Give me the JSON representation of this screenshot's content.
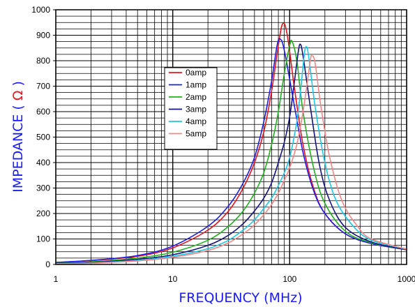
{
  "chart_data": {
    "type": "line",
    "xlabel": "FREQUENCY  (MHz)",
    "ylabel_main": "IMPEDANCE",
    "ylabel_unit": "Ω",
    "x_scale": "log",
    "xlim": [
      1,
      1000
    ],
    "ylim": [
      0,
      1000
    ],
    "x_ticks": [
      1,
      10,
      100,
      1000
    ],
    "x_tick_labels": [
      "1",
      "10",
      "100",
      "1000"
    ],
    "y_ticks": [
      0,
      100,
      200,
      300,
      400,
      500,
      600,
      700,
      800,
      900,
      1000
    ],
    "y_tick_labels": [
      "0",
      "100",
      "200",
      "300",
      "400",
      "500",
      "600",
      "700",
      "800",
      "900",
      "1000"
    ],
    "grid": true,
    "legend_position": "upper-left-center",
    "series": [
      {
        "name": "0amp",
        "color": "#e8141e",
        "points": [
          [
            1,
            8
          ],
          [
            2,
            15
          ],
          [
            5,
            32
          ],
          [
            10,
            65
          ],
          [
            20,
            135
          ],
          [
            30,
            210
          ],
          [
            40,
            300
          ],
          [
            50,
            400
          ],
          [
            60,
            520
          ],
          [
            70,
            680
          ],
          [
            80,
            860
          ],
          [
            87,
            945
          ],
          [
            95,
            905
          ],
          [
            110,
            690
          ],
          [
            130,
            470
          ],
          [
            160,
            300
          ],
          [
            200,
            200
          ],
          [
            300,
            120
          ],
          [
            500,
            82
          ],
          [
            1000,
            58
          ]
        ]
      },
      {
        "name": "1amp",
        "color": "#1e1ee6",
        "points": [
          [
            1,
            8
          ],
          [
            2,
            16
          ],
          [
            5,
            35
          ],
          [
            10,
            72
          ],
          [
            20,
            150
          ],
          [
            30,
            230
          ],
          [
            40,
            320
          ],
          [
            50,
            420
          ],
          [
            60,
            560
          ],
          [
            70,
            720
          ],
          [
            78,
            860
          ],
          [
            83,
            885
          ],
          [
            90,
            840
          ],
          [
            110,
            620
          ],
          [
            130,
            440
          ],
          [
            160,
            290
          ],
          [
            200,
            200
          ],
          [
            300,
            120
          ],
          [
            500,
            82
          ],
          [
            1000,
            58
          ]
        ]
      },
      {
        "name": "2amp",
        "color": "#22b022",
        "points": [
          [
            1,
            5
          ],
          [
            2,
            10
          ],
          [
            5,
            25
          ],
          [
            10,
            48
          ],
          [
            20,
            95
          ],
          [
            30,
            150
          ],
          [
            40,
            210
          ],
          [
            50,
            280
          ],
          [
            60,
            360
          ],
          [
            70,
            470
          ],
          [
            80,
            600
          ],
          [
            90,
            750
          ],
          [
            100,
            860
          ],
          [
            105,
            875
          ],
          [
            115,
            800
          ],
          [
            130,
            600
          ],
          [
            160,
            380
          ],
          [
            200,
            240
          ],
          [
            300,
            130
          ],
          [
            500,
            85
          ],
          [
            1000,
            58
          ]
        ]
      },
      {
        "name": "3amp",
        "color": "#151580",
        "points": [
          [
            1,
            4
          ],
          [
            2,
            8
          ],
          [
            5,
            20
          ],
          [
            10,
            38
          ],
          [
            20,
            75
          ],
          [
            30,
            115
          ],
          [
            40,
            160
          ],
          [
            50,
            210
          ],
          [
            60,
            260
          ],
          [
            70,
            320
          ],
          [
            80,
            400
          ],
          [
            90,
            480
          ],
          [
            100,
            580
          ],
          [
            110,
            720
          ],
          [
            118,
            830
          ],
          [
            123,
            865
          ],
          [
            130,
            820
          ],
          [
            150,
            620
          ],
          [
            180,
            390
          ],
          [
            220,
            250
          ],
          [
            300,
            145
          ],
          [
            500,
            88
          ],
          [
            1000,
            58
          ]
        ]
      },
      {
        "name": "4amp",
        "color": "#1ec6e8",
        "points": [
          [
            1,
            3
          ],
          [
            2,
            6
          ],
          [
            5,
            16
          ],
          [
            10,
            32
          ],
          [
            20,
            62
          ],
          [
            30,
            95
          ],
          [
            40,
            135
          ],
          [
            50,
            175
          ],
          [
            60,
            220
          ],
          [
            70,
            260
          ],
          [
            80,
            310
          ],
          [
            90,
            360
          ],
          [
            100,
            420
          ],
          [
            115,
            560
          ],
          [
            125,
            700
          ],
          [
            133,
            820
          ],
          [
            138,
            855
          ],
          [
            145,
            820
          ],
          [
            165,
            620
          ],
          [
            200,
            400
          ],
          [
            250,
            250
          ],
          [
            350,
            150
          ],
          [
            500,
            95
          ],
          [
            1000,
            60
          ]
        ]
      },
      {
        "name": "5amp",
        "color": "#f08888",
        "points": [
          [
            1,
            3
          ],
          [
            2,
            5
          ],
          [
            5,
            14
          ],
          [
            10,
            28
          ],
          [
            20,
            55
          ],
          [
            30,
            85
          ],
          [
            40,
            120
          ],
          [
            50,
            155
          ],
          [
            60,
            195
          ],
          [
            70,
            235
          ],
          [
            80,
            280
          ],
          [
            90,
            330
          ],
          [
            100,
            380
          ],
          [
            115,
            470
          ],
          [
            130,
            600
          ],
          [
            140,
            700
          ],
          [
            150,
            800
          ],
          [
            155,
            820
          ],
          [
            165,
            790
          ],
          [
            185,
            620
          ],
          [
            220,
            420
          ],
          [
            280,
            250
          ],
          [
            380,
            150
          ],
          [
            500,
            100
          ],
          [
            1000,
            60
          ]
        ]
      }
    ]
  }
}
